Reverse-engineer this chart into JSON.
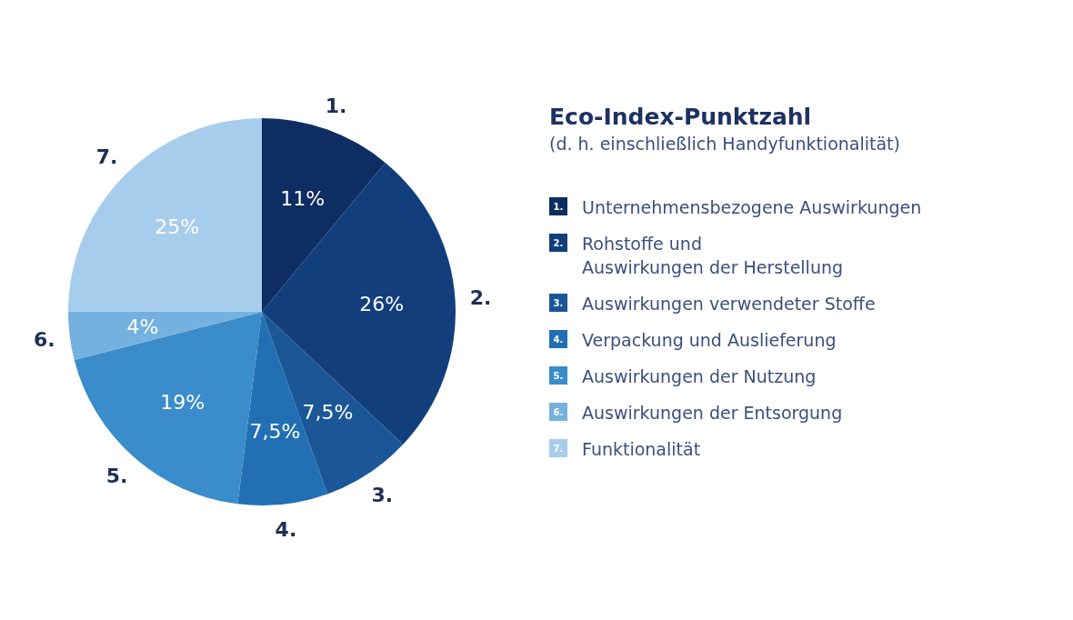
{
  "chart_data": {
    "type": "pie",
    "title": "Eco-Index-Punktzahl",
    "subtitle": "(d. h. einschließlich Handyfunktionalität)",
    "categories": [
      "Unternehmensbezogene Auswirkungen",
      "Rohstoffe und\nAuswirkungen der Herstellung",
      "Auswirkungen verwendeter Stoffe",
      "Verpackung und Auslieferung",
      "Auswirkungen der Nutzung",
      "Auswirkungen der Entsorgung",
      "Funktionalität"
    ],
    "values": [
      11,
      26,
      7.5,
      7.5,
      19,
      4,
      25
    ],
    "value_labels": [
      "11%",
      "26%",
      "7,5%",
      "7,5%",
      "19%",
      "4%",
      "25%"
    ],
    "colors": [
      "#0e2d62",
      "#123f7c",
      "#1b5797",
      "#2270b3",
      "#3a8ccb",
      "#74b1de",
      "#a7cdec"
    ],
    "annotations": [
      "1.",
      "2.",
      "3.",
      "4.",
      "5.",
      "6.",
      "7."
    ],
    "legend": "right"
  }
}
